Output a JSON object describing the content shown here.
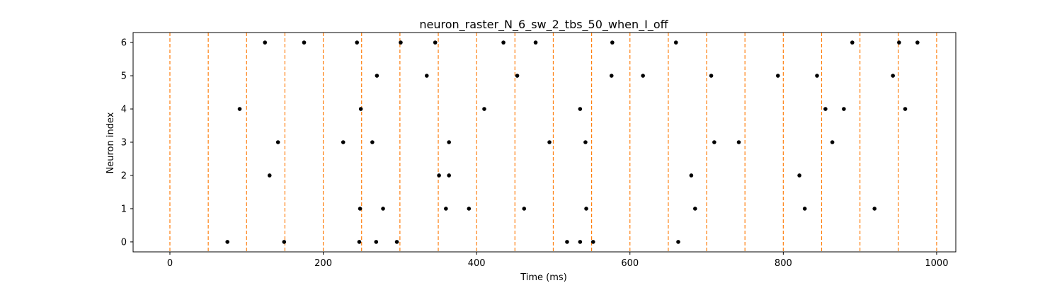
{
  "chart_data": {
    "type": "scatter",
    "title": "neuron_raster_N_6_sw_2_tbs_50_when_I_off",
    "xlabel": "Time (ms)",
    "ylabel": "Neuron index",
    "xlim": [
      -48,
      1025
    ],
    "ylim": [
      -0.3,
      6.3
    ],
    "x_ticks": [
      0,
      200,
      400,
      600,
      800,
      1000
    ],
    "y_ticks": [
      0,
      1,
      2,
      3,
      4,
      5,
      6
    ],
    "grid": false,
    "colors": {
      "spike": "#000000",
      "boundary": "#ff7f0e"
    },
    "time_bin_boundaries": [
      0,
      50,
      100,
      150,
      200,
      250,
      300,
      350,
      400,
      450,
      500,
      550,
      600,
      650,
      700,
      750,
      800,
      850,
      900,
      950,
      1000
    ],
    "spikes": [
      {
        "neuron": 0,
        "times": [
          75,
          149,
          247,
          269,
          296,
          518,
          535,
          552,
          663
        ]
      },
      {
        "neuron": 1,
        "times": [
          248,
          278,
          360,
          390,
          462,
          543,
          685,
          828,
          919
        ]
      },
      {
        "neuron": 2,
        "times": [
          130,
          351,
          364,
          680,
          821
        ]
      },
      {
        "neuron": 3,
        "times": [
          141,
          226,
          264,
          364,
          495,
          542,
          710,
          742,
          864
        ]
      },
      {
        "neuron": 4,
        "times": [
          91,
          249,
          410,
          535,
          855,
          879,
          959
        ]
      },
      {
        "neuron": 5,
        "times": [
          270,
          335,
          453,
          576,
          617,
          706,
          793,
          844,
          943
        ]
      },
      {
        "neuron": 6,
        "times": [
          124,
          175,
          244,
          301,
          346,
          435,
          477,
          577,
          660,
          890,
          951,
          975
        ]
      }
    ]
  }
}
